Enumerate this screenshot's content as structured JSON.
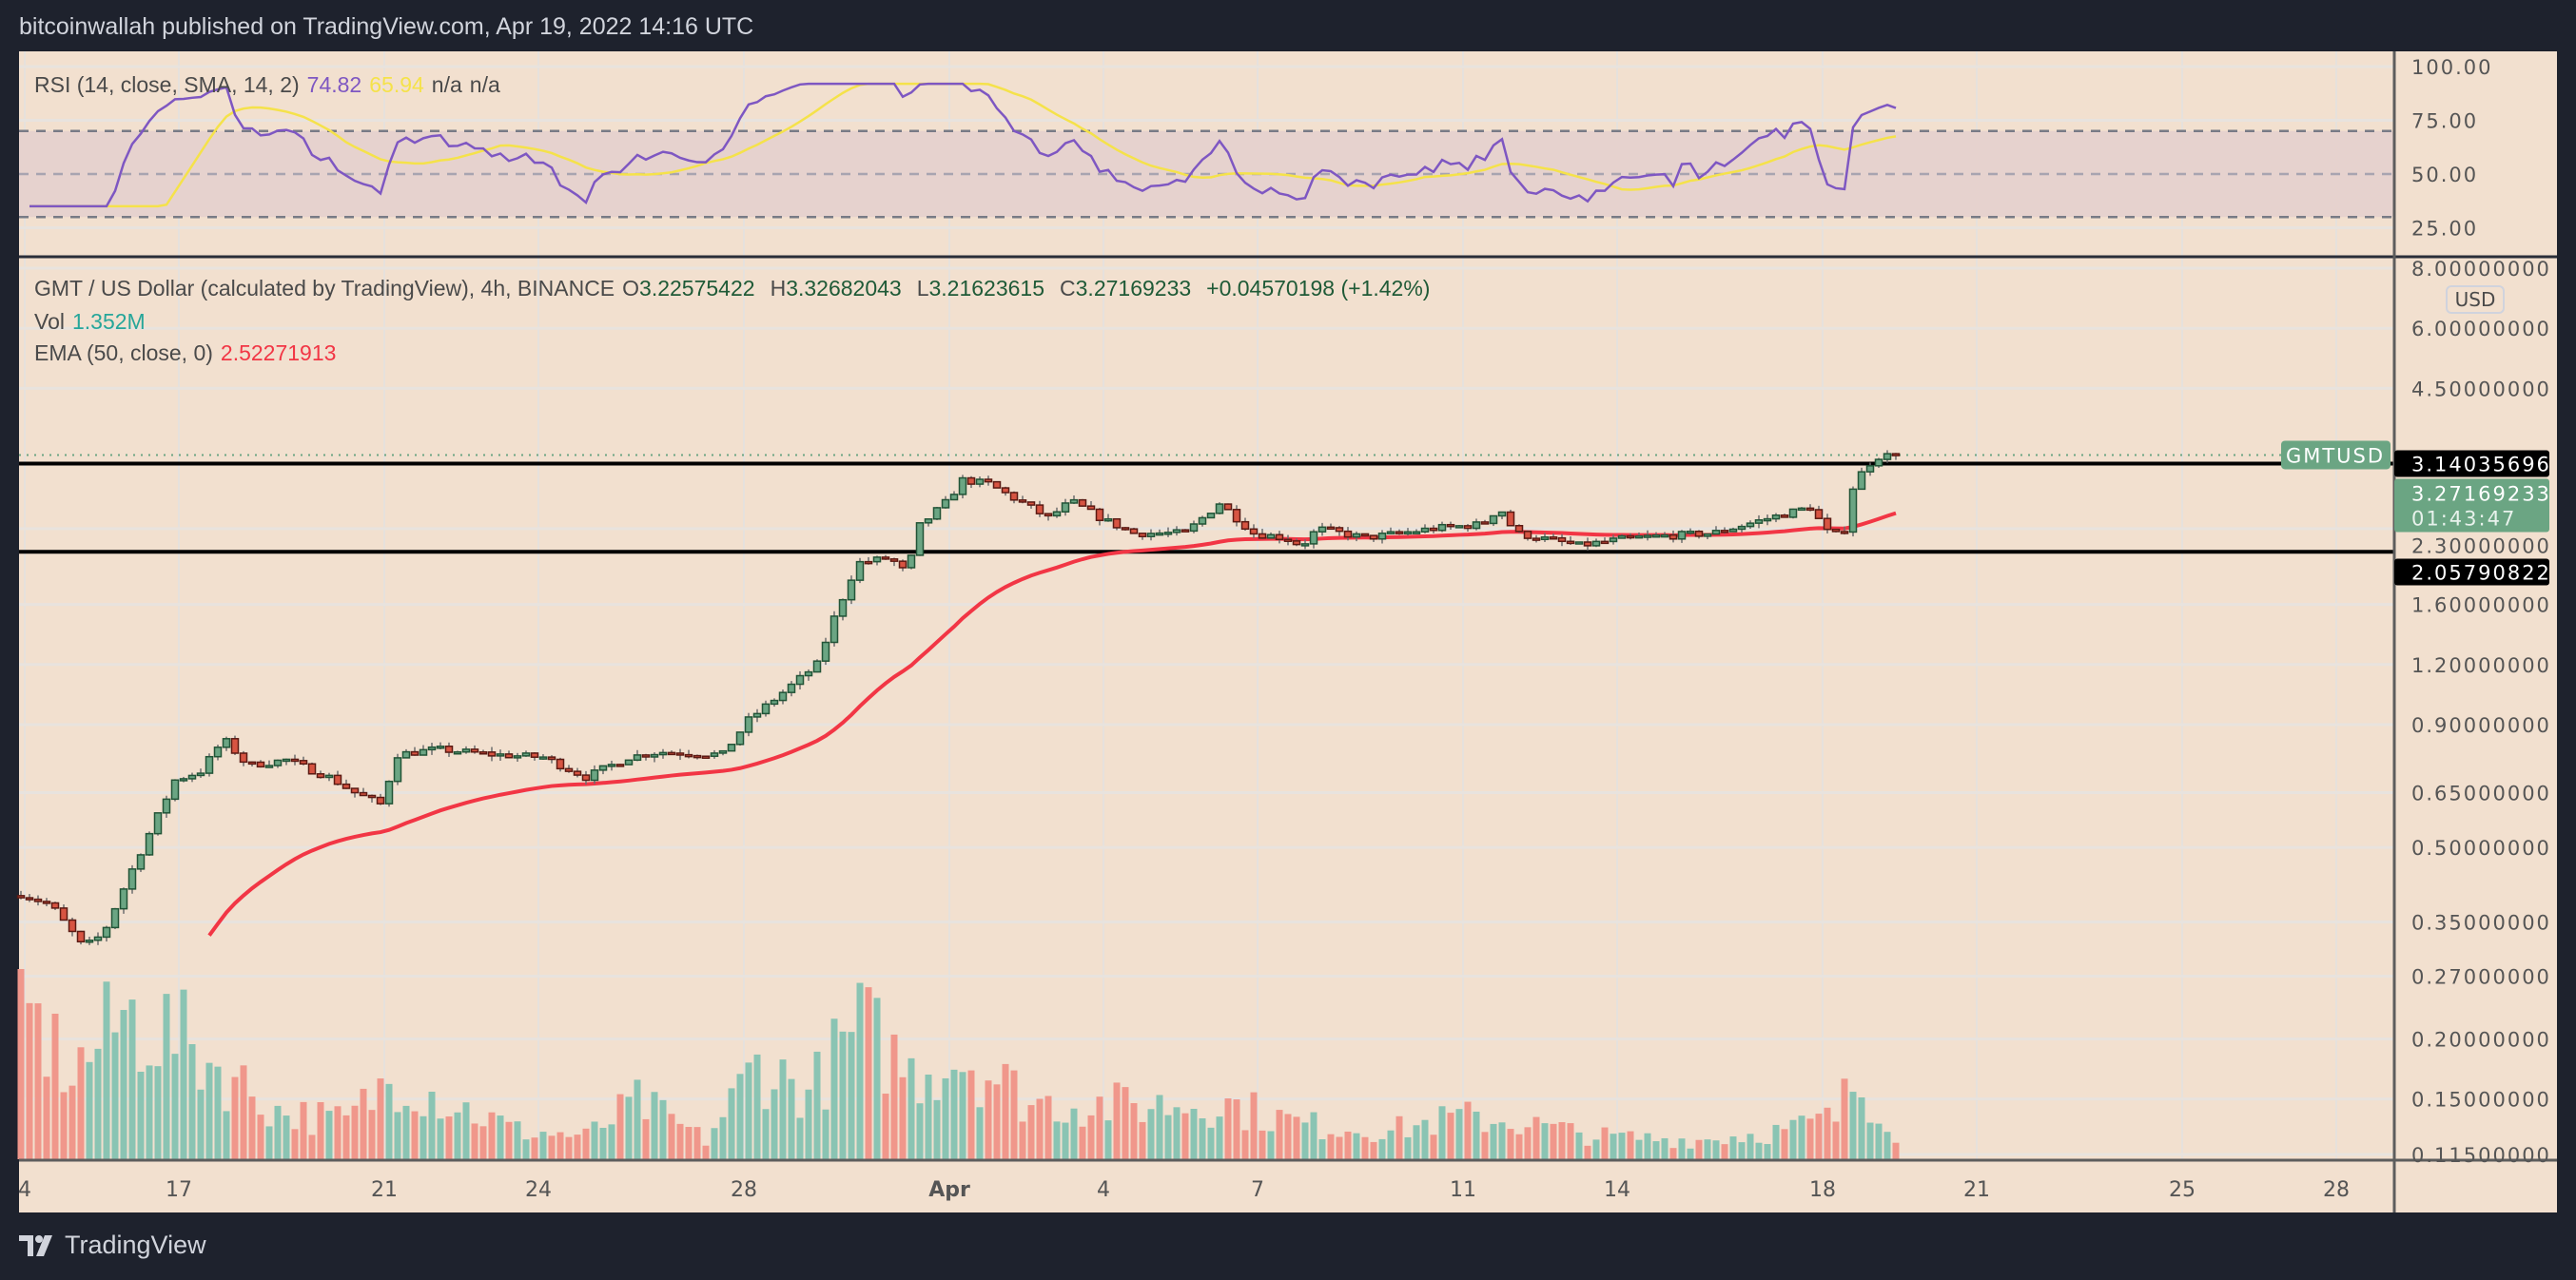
{
  "header": {
    "published": "bitcoinwallah published on TradingView.com, Apr 19, 2022 14:16 UTC"
  },
  "rsi_legend": {
    "label": "RSI (14, close, SMA, 14, 2)",
    "rsi_value": "74.82",
    "sma_value": "65.94",
    "na1": "n/a",
    "na2": "n/a"
  },
  "main_legend": {
    "symbol": "GMT / US Dollar (calculated by TradingView), 4h, BINANCE",
    "o_label": "O",
    "open": "3.22575422",
    "h_label": "H",
    "high": "3.32682043",
    "l_label": "L",
    "low": "3.21623615",
    "c_label": "C",
    "close": "3.27169233",
    "change": "+0.04570198 (+1.42%)",
    "vol_label": "Vol",
    "vol_value": "1.352M",
    "ema_label": "EMA (50, close, 0)",
    "ema_value": "2.52271913"
  },
  "price_axis": {
    "currency": "USD",
    "ticks": [
      "8.00000000",
      "6.00000000",
      "4.50000000",
      "2.30000000",
      "1.60000000",
      "1.20000000",
      "0.90000000",
      "0.65000000",
      "0.50000000",
      "0.35000000",
      "0.27000000",
      "0.20000000",
      "0.15000000",
      "0.11500000"
    ],
    "symbol_label": "GMTUSD",
    "last_price": "3.27169233",
    "countdown": "01:43:47",
    "hline_labels": [
      "3.14035696",
      "2.05790822"
    ]
  },
  "rsi_axis": {
    "ticks": [
      "100.00",
      "75.00",
      "50.00",
      "25.00"
    ]
  },
  "time_axis": {
    "labels": [
      {
        "text": "4",
        "day": 0
      },
      {
        "text": "17",
        "day": 3
      },
      {
        "text": "21",
        "day": 7
      },
      {
        "text": "24",
        "day": 10
      },
      {
        "text": "28",
        "day": 14
      },
      {
        "text": "Apr",
        "day": 18
      },
      {
        "text": "4",
        "day": 21
      },
      {
        "text": "7",
        "day": 24
      },
      {
        "text": "11",
        "day": 28
      },
      {
        "text": "14",
        "day": 31
      },
      {
        "text": "18",
        "day": 35
      },
      {
        "text": "21",
        "day": 38
      },
      {
        "text": "25",
        "day": 42
      },
      {
        "text": "28",
        "day": 45
      }
    ]
  },
  "footer": {
    "brand": "TradingView"
  },
  "colors": {
    "up": "#6ba583",
    "up_border": "#225437",
    "down": "#d75442",
    "down_border": "#5b1a13",
    "vol_up": "#8ac4b3",
    "vol_down": "#f0978b",
    "ema": "#f23645",
    "rsi": "#7e57c2",
    "rsi_sma": "#f5e24a",
    "bg": "#f2e0cf"
  },
  "chart_data": {
    "type": "candlestick",
    "title": "GMT / US Dollar, 4h, BINANCE",
    "scale": "log",
    "ylim": [
      0.115,
      8.0
    ],
    "candle_count": 220,
    "close_anchors": [
      [
        0,
        0.4
      ],
      [
        3.5,
        0.38
      ],
      [
        7.3,
        0.31
      ],
      [
        9.6,
        0.33
      ],
      [
        13,
        0.45
      ],
      [
        18,
        0.69
      ],
      [
        21,
        0.72
      ],
      [
        23.7,
        0.84
      ],
      [
        26.5,
        0.74
      ],
      [
        31,
        0.76
      ],
      [
        36,
        0.7
      ],
      [
        39,
        0.65
      ],
      [
        42,
        0.615
      ],
      [
        44,
        0.78
      ],
      [
        48.6,
        0.8
      ],
      [
        55,
        0.78
      ],
      [
        61,
        0.77
      ],
      [
        66,
        0.7
      ],
      [
        71,
        0.77
      ],
      [
        74.6,
        0.79
      ],
      [
        82,
        0.78
      ],
      [
        85,
        0.92
      ],
      [
        89,
        1.05
      ],
      [
        93,
        1.2
      ],
      [
        95,
        1.5
      ],
      [
        97.7,
        1.95
      ],
      [
        101.5,
        2.0
      ],
      [
        103.5,
        1.85
      ],
      [
        105,
        2.33
      ],
      [
        108,
        2.6
      ],
      [
        110,
        2.9
      ],
      [
        113,
        2.85
      ],
      [
        117,
        2.6
      ],
      [
        120,
        2.42
      ],
      [
        122.7,
        2.62
      ],
      [
        126.5,
        2.4
      ],
      [
        130,
        2.25
      ],
      [
        136,
        2.25
      ],
      [
        140,
        2.6
      ],
      [
        144,
        2.25
      ],
      [
        147.7,
        2.2
      ],
      [
        149.6,
        2.12
      ],
      [
        151.5,
        2.3
      ],
      [
        157,
        2.2
      ],
      [
        165,
        2.3
      ],
      [
        170.8,
        2.35
      ],
      [
        172.7,
        2.55
      ],
      [
        174.6,
        2.25
      ],
      [
        182,
        2.12
      ],
      [
        188,
        2.2
      ],
      [
        197.7,
        2.25
      ],
      [
        203.5,
        2.4
      ],
      [
        209,
        2.55
      ],
      [
        211.5,
        2.2
      ],
      [
        213,
        2.3
      ],
      [
        214,
        2.8
      ],
      [
        215.5,
        3.1
      ],
      [
        217,
        3.25
      ],
      [
        219,
        3.27169233
      ]
    ],
    "volume_anchors": [
      [
        0,
        0.8
      ],
      [
        6,
        0.45
      ],
      [
        12,
        0.75
      ],
      [
        18,
        0.65
      ],
      [
        24,
        0.45
      ],
      [
        30,
        0.25
      ],
      [
        38,
        0.2
      ],
      [
        44,
        0.45
      ],
      [
        50,
        0.3
      ],
      [
        58,
        0.15
      ],
      [
        66,
        0.12
      ],
      [
        72,
        0.3
      ],
      [
        80,
        0.1
      ],
      [
        86,
        0.5
      ],
      [
        92,
        0.35
      ],
      [
        98,
        0.7
      ],
      [
        104,
        0.45
      ],
      [
        110,
        0.55
      ],
      [
        118,
        0.3
      ],
      [
        130,
        0.28
      ],
      [
        140,
        0.3
      ],
      [
        150,
        0.18
      ],
      [
        160,
        0.15
      ],
      [
        168,
        0.22
      ],
      [
        174,
        0.2
      ],
      [
        184,
        0.12
      ],
      [
        196,
        0.1
      ],
      [
        206,
        0.15
      ],
      [
        212,
        0.22
      ],
      [
        214,
        0.4
      ],
      [
        217,
        0.3
      ],
      [
        219,
        0.15
      ]
    ],
    "hlines": [
      3.14035696,
      2.05790822
    ],
    "ema_period": 50,
    "rsi": {
      "period": 14,
      "sma_period": 14,
      "ylim": [
        0,
        100
      ],
      "bands": [
        70,
        50,
        30
      ]
    }
  }
}
